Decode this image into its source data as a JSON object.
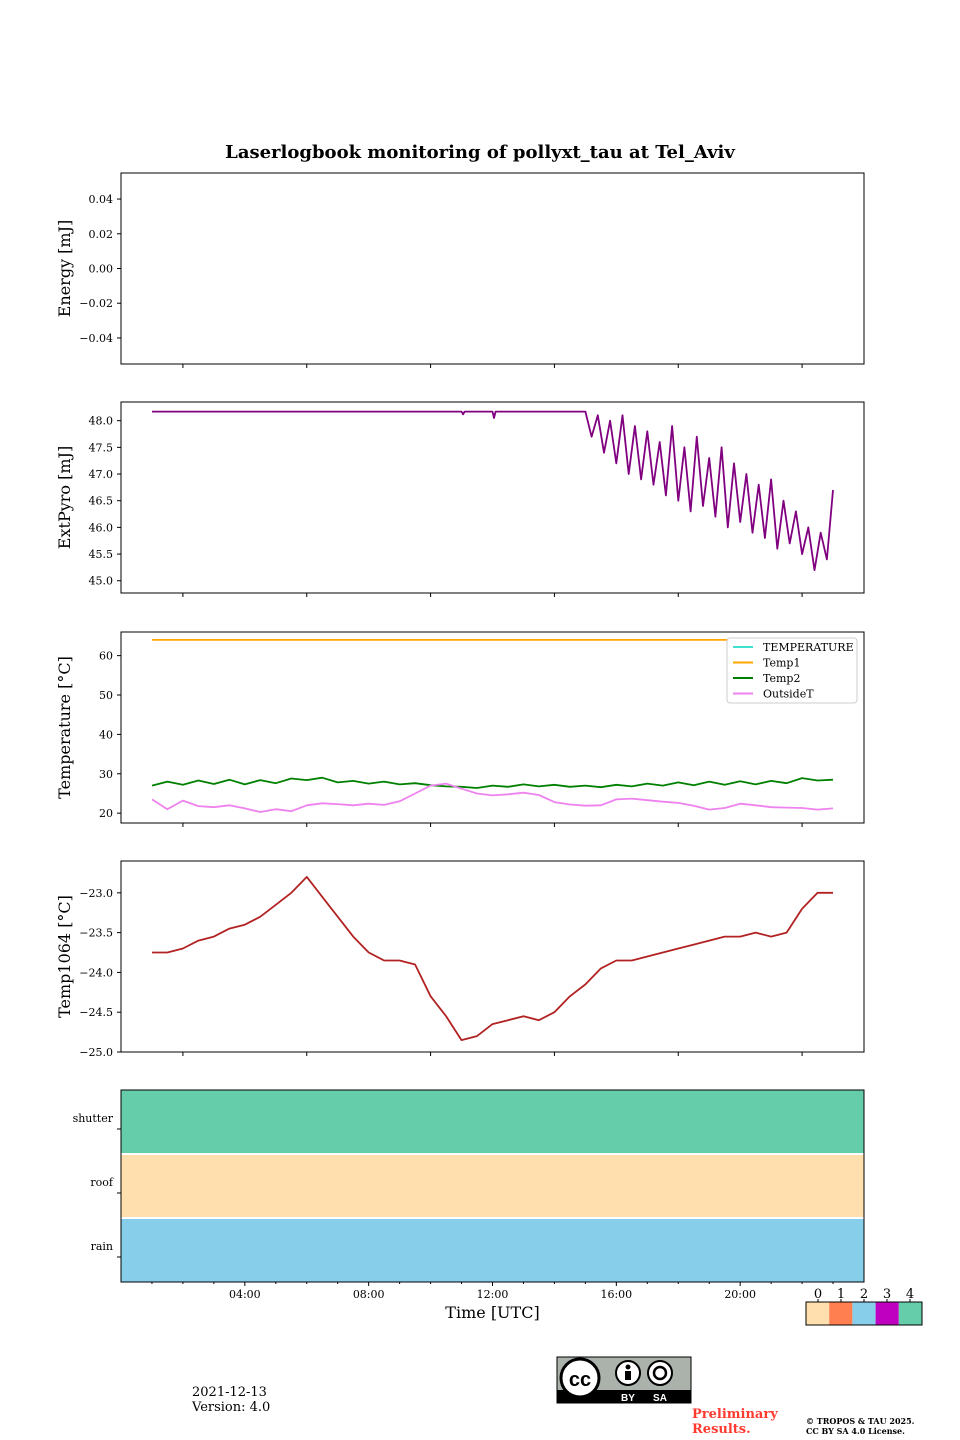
{
  "title": "Laserlogbook monitoring of pollyxt_tau at Tel_Aviv",
  "chart_data": [
    {
      "type": "line",
      "ylabel": "Energy [mJ]",
      "ylim": [
        -0.055,
        0.055
      ],
      "yticks": [
        -0.04,
        -0.02,
        0.0,
        0.02,
        0.04
      ],
      "ytick_labels": [
        "−0.04",
        "−0.02",
        "0.00",
        "0.02",
        "0.04"
      ],
      "series": []
    },
    {
      "type": "line",
      "ylabel": "ExtPyro [mJ]",
      "ylim": [
        44.77,
        48.35
      ],
      "yticks": [
        45.0,
        45.5,
        46.0,
        46.5,
        47.0,
        47.5,
        48.0
      ],
      "ytick_labels": [
        "45.0",
        "45.5",
        "46.0",
        "46.5",
        "47.0",
        "47.5",
        "48.0"
      ],
      "series": [
        {
          "color": "#800080",
          "x": [
            1.0,
            11.0,
            11.05,
            11.1,
            12.0,
            12.05,
            12.1,
            15.0,
            15.2,
            15.4,
            15.6,
            15.8,
            16.0,
            16.2,
            16.4,
            16.6,
            16.8,
            17.0,
            17.2,
            17.4,
            17.6,
            17.8,
            18.0,
            18.2,
            18.4,
            18.6,
            18.8,
            19.0,
            19.2,
            19.4,
            19.6,
            19.8,
            20.0,
            20.2,
            20.4,
            20.6,
            20.8,
            21.0,
            21.2,
            21.4,
            21.6,
            21.8,
            22.0,
            22.2,
            22.4,
            22.6,
            22.8,
            23.0
          ],
          "y": [
            48.17,
            48.17,
            48.12,
            48.17,
            48.17,
            48.05,
            48.17,
            48.17,
            47.7,
            48.1,
            47.4,
            48.0,
            47.2,
            48.1,
            47.0,
            47.9,
            46.9,
            47.8,
            46.8,
            47.6,
            46.6,
            47.9,
            46.5,
            47.5,
            46.3,
            47.7,
            46.4,
            47.3,
            46.2,
            47.5,
            46.0,
            47.2,
            46.1,
            47.0,
            45.9,
            46.8,
            45.8,
            46.9,
            45.6,
            46.5,
            45.7,
            46.3,
            45.5,
            46.0,
            45.2,
            45.9,
            45.4,
            46.7
          ]
        }
      ]
    },
    {
      "type": "line",
      "ylabel": "Temperature [°C]",
      "ylim": [
        17.5,
        66
      ],
      "yticks": [
        20,
        30,
        40,
        50,
        60
      ],
      "ytick_labels": [
        "20",
        "30",
        "40",
        "50",
        "60"
      ],
      "legend": "top-right",
      "series": [
        {
          "name": "TEMPERATURE",
          "color": "#40e0d0",
          "x": [],
          "y": []
        },
        {
          "name": "Temp1",
          "color": "#ffa500",
          "x": [
            1.0,
            23.0
          ],
          "y": [
            64,
            64
          ]
        },
        {
          "name": "Temp2",
          "color": "#008000",
          "x": [
            1.0,
            1.5,
            2.0,
            2.5,
            3.0,
            3.5,
            4.0,
            4.5,
            5.0,
            5.5,
            6.0,
            6.5,
            7.0,
            7.5,
            8.0,
            8.5,
            9.0,
            9.5,
            10.0,
            10.5,
            11.0,
            11.5,
            12.0,
            12.5,
            13.0,
            13.5,
            14.0,
            14.5,
            15.0,
            15.5,
            16.0,
            16.5,
            17.0,
            17.5,
            18.0,
            18.5,
            19.0,
            19.5,
            20.0,
            20.5,
            21.0,
            21.5,
            22.0,
            22.5,
            23.0
          ],
          "y": [
            27,
            28,
            27.2,
            28.3,
            27.4,
            28.5,
            27.3,
            28.4,
            27.6,
            28.8,
            28.4,
            29.0,
            27.8,
            28.2,
            27.5,
            28.0,
            27.3,
            27.6,
            27.1,
            26.8,
            26.7,
            26.4,
            27.0,
            26.7,
            27.3,
            26.8,
            27.2,
            26.7,
            27.0,
            26.6,
            27.2,
            26.8,
            27.5,
            27.0,
            27.8,
            27.1,
            28.0,
            27.2,
            28.1,
            27.3,
            28.2,
            27.6,
            28.9,
            28.3,
            28.5
          ]
        },
        {
          "name": "OutsideT",
          "color": "#ee82ee",
          "x": [
            1.0,
            1.5,
            2.0,
            2.5,
            3.0,
            3.5,
            4.0,
            4.5,
            5.0,
            5.5,
            6.0,
            6.5,
            7.0,
            7.5,
            8.0,
            8.5,
            9.0,
            9.5,
            10.0,
            10.5,
            11.0,
            11.5,
            12.0,
            12.5,
            13.0,
            13.5,
            14.0,
            14.5,
            15.0,
            15.5,
            16.0,
            16.5,
            17.0,
            17.5,
            18.0,
            18.5,
            19.0,
            19.5,
            20.0,
            20.5,
            21.0,
            21.5,
            22.0,
            22.5,
            23.0
          ],
          "y": [
            23.5,
            21.0,
            23.2,
            21.8,
            21.5,
            22.0,
            21.2,
            20.3,
            21.0,
            20.5,
            22.0,
            22.5,
            22.3,
            22.0,
            22.4,
            22.1,
            23.0,
            25.0,
            27.0,
            27.5,
            26.2,
            25.0,
            24.5,
            24.8,
            25.2,
            24.6,
            22.8,
            22.2,
            21.9,
            22.0,
            23.5,
            23.7,
            23.3,
            22.9,
            22.6,
            21.9,
            20.9,
            21.3,
            22.4,
            22.0,
            21.5,
            21.4,
            21.3,
            20.9,
            21.2
          ]
        }
      ]
    },
    {
      "type": "line",
      "ylabel": "Temp1064 [°C]",
      "ylim": [
        -25.0,
        -22.6
      ],
      "yticks": [
        -25.0,
        -24.5,
        -24.0,
        -23.5,
        -23.0
      ],
      "ytick_labels": [
        "−25.0",
        "−24.5",
        "−24.0",
        "−23.5",
        "−23.0"
      ],
      "series": [
        {
          "color": "#b22222",
          "x": [
            1.0,
            1.5,
            2.0,
            2.5,
            3.0,
            3.5,
            4.0,
            4.5,
            5.0,
            5.5,
            6.0,
            6.5,
            7.0,
            7.5,
            8.0,
            8.5,
            9.0,
            9.5,
            10.0,
            10.5,
            11.0,
            11.5,
            12.0,
            12.5,
            13.0,
            13.5,
            14.0,
            14.5,
            15.0,
            15.5,
            16.0,
            16.5,
            17.0,
            17.5,
            18.0,
            18.5,
            19.0,
            19.5,
            20.0,
            20.5,
            21.0,
            21.5,
            22.0,
            22.5,
            23.0
          ],
          "y": [
            -23.75,
            -23.75,
            -23.7,
            -23.6,
            -23.55,
            -23.45,
            -23.4,
            -23.3,
            -23.15,
            -23.0,
            -22.8,
            -23.05,
            -23.3,
            -23.55,
            -23.75,
            -23.85,
            -23.85,
            -23.9,
            -24.3,
            -24.55,
            -24.85,
            -24.8,
            -24.65,
            -24.6,
            -24.55,
            -24.6,
            -24.5,
            -24.3,
            -24.15,
            -23.95,
            -23.85,
            -23.85,
            -23.8,
            -23.75,
            -23.7,
            -23.65,
            -23.6,
            -23.55,
            -23.55,
            -23.5,
            -23.55,
            -23.5,
            -23.2,
            -23.0,
            -23.0
          ]
        }
      ]
    },
    {
      "type": "heatmap",
      "xlabel": "Time [UTC]",
      "xlim": [
        0,
        24
      ],
      "xticks": [
        4,
        8,
        12,
        16,
        20
      ],
      "xtick_labels": [
        "04:00",
        "08:00",
        "12:00",
        "16:00",
        "20:00"
      ],
      "rows": [
        {
          "label": "shutter",
          "value": 4
        },
        {
          "label": "roof",
          "value": 0
        },
        {
          "label": "rain",
          "value": 2
        }
      ],
      "colorbar": {
        "labels": [
          "0",
          "1",
          "2",
          "3",
          "4"
        ],
        "colors": [
          "#fedfad",
          "#ff7f50",
          "#87ceeb",
          "#c000c0",
          "#66cdaa"
        ]
      }
    }
  ],
  "footer": {
    "date": "2021-12-13",
    "version": "Version: 4.0",
    "cc_by": "BY",
    "cc_sa": "SA",
    "prelim_1": "Preliminary",
    "prelim_2": "Results.",
    "copyright_1": "© TROPOS & TAU 2025.",
    "copyright_2": "CC BY SA 4.0 License."
  }
}
